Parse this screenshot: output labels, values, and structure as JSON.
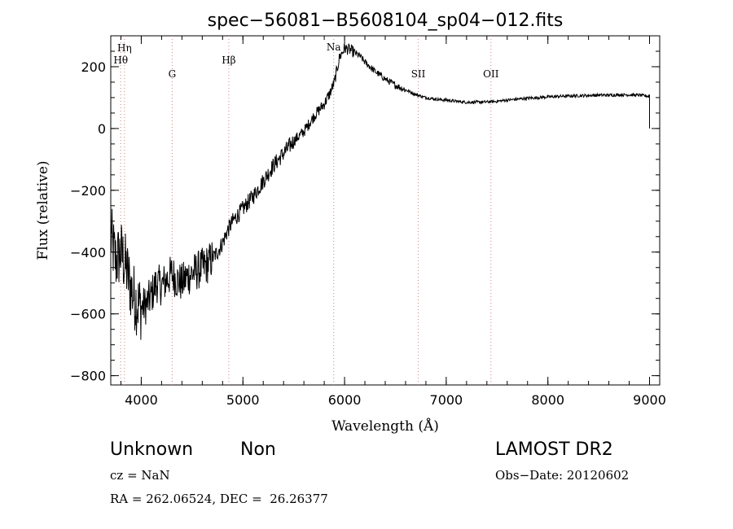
{
  "chart_data": {
    "type": "line",
    "title": "spec−56081−B5608104_sp04−012.fits",
    "xlabel": "Wavelength (Å)",
    "ylabel": "Flux (relative)",
    "xlim": [
      3700,
      9100
    ],
    "ylim": [
      -830,
      300
    ],
    "x_ticks": [
      4000,
      5000,
      6000,
      7000,
      8000,
      9000
    ],
    "y_ticks": [
      200,
      0,
      -200,
      -400,
      -600,
      -800
    ],
    "x_tick_labels": [
      "4000",
      "5000",
      "6000",
      "7000",
      "8000",
      "9000"
    ],
    "y_tick_labels": [
      "200",
      "0",
      "−200",
      "−400",
      "−600",
      "−800"
    ],
    "series": [
      {
        "x": [
          3700,
          3750,
          3800,
          3850,
          3900,
          3950,
          4000,
          4050,
          4100,
          4150,
          4200,
          4250,
          4300,
          4350,
          4400,
          4450,
          4500,
          4550,
          4600,
          4650,
          4700,
          4750,
          4800,
          4850,
          4900,
          4950,
          5000,
          5100,
          5200,
          5300,
          5400,
          5500,
          5600,
          5700,
          5800,
          5850,
          5900,
          5950,
          6000,
          6050,
          6100,
          6150,
          6200,
          6300,
          6400,
          6500,
          6600,
          6700,
          6800,
          6900,
          7000,
          7100,
          7200,
          7300,
          7400,
          7500,
          7600,
          7700,
          7800,
          7900,
          8000,
          8100,
          8200,
          8300,
          8400,
          8500,
          8600,
          8700,
          8800,
          8900,
          8950,
          9000,
          9020
        ],
        "y": [
          -350,
          -430,
          -400,
          -450,
          -520,
          -560,
          -580,
          -570,
          -540,
          -500,
          -510,
          -490,
          -470,
          -490,
          -500,
          -480,
          -470,
          -460,
          -450,
          -440,
          -420,
          -400,
          -370,
          -330,
          -300,
          -280,
          -260,
          -220,
          -170,
          -120,
          -80,
          -40,
          -10,
          40,
          80,
          110,
          150,
          230,
          260,
          255,
          245,
          235,
          215,
          185,
          160,
          140,
          125,
          110,
          100,
          95,
          92,
          88,
          85,
          85,
          86,
          88,
          92,
          95,
          98,
          100,
          102,
          104,
          105,
          106,
          107,
          108,
          108,
          109,
          109,
          108,
          106,
          104,
          0
        ]
      }
    ],
    "lines": [
      {
        "label": "Hη",
        "x": 3835
      },
      {
        "label": "Hθ",
        "x": 3798
      },
      {
        "label": "G",
        "x": 4304
      },
      {
        "label": "Hβ",
        "x": 4861
      },
      {
        "label": "Na",
        "x": 5893
      },
      {
        "label": "SII",
        "x": 6725
      },
      {
        "label": "OII",
        "x": 7440
      }
    ],
    "grid": false,
    "legend": "none"
  },
  "info": {
    "class_label": "Unknown",
    "subclass_label": "Non",
    "cz_text": "cz = NaN",
    "coords_text": "RA = 262.06524, DEC =  26.26377",
    "survey_label": "LAMOST DR2",
    "obs_date_text": "Obs−Date: 20120602"
  }
}
